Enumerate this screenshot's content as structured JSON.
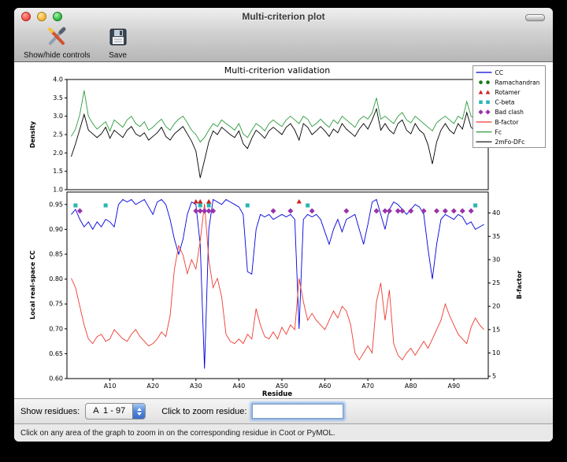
{
  "window": {
    "title": "Multi-criterion plot"
  },
  "toolbar": {
    "show_hide_label": "Show/hide controls",
    "save_label": "Save"
  },
  "controls": {
    "show_residues_label": "Show residues:",
    "range_value": "A  1 - 97",
    "zoom_label": "Click to zoom residue:",
    "zoom_input_value": "",
    "status_text": "Click on any area of the graph to zoom in on the corresponding residue in Coot or PyMOL."
  },
  "chart_data": {
    "type": "line",
    "title": "Multi-criterion validation",
    "xlabel": "Residue",
    "x_range": [
      1,
      97
    ],
    "xticks": [
      [
        10,
        "A10"
      ],
      [
        20,
        "A20"
      ],
      [
        30,
        "A30"
      ],
      [
        40,
        "A40"
      ],
      [
        50,
        "A50"
      ],
      [
        60,
        "A60"
      ],
      [
        70,
        "A70"
      ],
      [
        80,
        "A80"
      ],
      [
        90,
        "A90"
      ]
    ],
    "legend": [
      {
        "label": "CC",
        "swatch": "line",
        "color": "#0000dd"
      },
      {
        "label": "Ramachandran",
        "swatch": "circle",
        "color": "#1a7a1a"
      },
      {
        "label": "Rotamer",
        "swatch": "triangle",
        "color": "#cc2222"
      },
      {
        "label": "C-beta",
        "swatch": "square",
        "color": "#2ab5b5"
      },
      {
        "label": "Bad clash",
        "swatch": "diamond",
        "color": "#9933aa"
      },
      {
        "label": "B-factor",
        "swatch": "line",
        "color": "#ee3b32"
      },
      {
        "label": "Fc",
        "swatch": "line",
        "color": "#2e9b3e"
      },
      {
        "label": "2mFo-DFc",
        "swatch": "line",
        "color": "#000000"
      }
    ],
    "panels": [
      {
        "name": "density",
        "ylabel": "Density",
        "ylim": [
          1.0,
          4.0
        ],
        "yticks": [
          [
            4.0,
            "4.0"
          ],
          [
            3.5,
            "3.5"
          ],
          [
            3.0,
            "3.0"
          ],
          [
            2.5,
            "2.5"
          ],
          [
            2.0,
            "2.0"
          ],
          [
            1.5,
            "1.5"
          ],
          [
            1.0,
            "1.0"
          ]
        ],
        "series": [
          {
            "name": "Fc",
            "color": "#2e9b3e",
            "values": [
              2.45,
              2.65,
              3.05,
              3.7,
              3.0,
              2.8,
              2.65,
              2.75,
              2.85,
              2.6,
              2.9,
              2.8,
              2.7,
              2.9,
              3.0,
              2.8,
              2.72,
              2.85,
              2.62,
              2.7,
              2.82,
              2.92,
              2.72,
              2.62,
              2.8,
              2.92,
              3.0,
              2.82,
              2.62,
              2.5,
              2.3,
              2.42,
              2.62,
              2.8,
              2.72,
              2.9,
              2.8,
              2.72,
              2.62,
              2.8,
              2.52,
              2.42,
              2.62,
              2.8,
              2.72,
              2.6,
              2.8,
              2.9,
              2.8,
              2.72,
              2.9,
              3.0,
              2.9,
              2.8,
              3.0,
              2.92,
              2.72,
              2.8,
              2.92,
              2.8,
              2.7,
              2.9,
              2.8,
              3.0,
              2.9,
              2.8,
              2.7,
              2.9,
              3.0,
              2.92,
              3.1,
              3.5,
              2.92,
              3.0,
              2.9,
              2.8,
              3.0,
              3.1,
              2.9,
              2.82,
              3.0,
              2.9,
              2.8,
              2.7,
              2.6,
              2.82,
              2.92,
              3.0,
              2.9,
              2.8,
              3.0,
              2.92,
              3.4,
              3.0,
              2.92,
              3.3,
              3.42
            ]
          },
          {
            "name": "2mFo-DFc",
            "color": "#000000",
            "values": [
              1.9,
              2.25,
              2.65,
              3.05,
              2.62,
              2.52,
              2.42,
              2.52,
              2.7,
              2.4,
              2.62,
              2.52,
              2.42,
              2.62,
              2.72,
              2.52,
              2.45,
              2.55,
              2.35,
              2.45,
              2.55,
              2.7,
              2.45,
              2.35,
              2.52,
              2.62,
              2.72,
              2.52,
              2.32,
              2.05,
              1.32,
              1.8,
              2.3,
              2.6,
              2.5,
              2.7,
              2.6,
              2.5,
              2.42,
              2.6,
              2.25,
              2.12,
              2.4,
              2.62,
              2.52,
              2.4,
              2.6,
              2.7,
              2.6,
              2.5,
              2.7,
              2.8,
              2.62,
              2.35,
              2.8,
              2.7,
              2.5,
              2.6,
              2.72,
              2.6,
              2.45,
              2.65,
              2.55,
              2.8,
              2.65,
              2.55,
              2.45,
              2.65,
              2.8,
              2.65,
              2.9,
              3.2,
              2.62,
              2.8,
              2.62,
              2.52,
              2.8,
              2.9,
              2.62,
              2.52,
              2.8,
              2.62,
              2.52,
              2.22,
              1.7,
              2.3,
              2.62,
              2.8,
              2.62,
              2.52,
              2.8,
              2.65,
              3.1,
              2.7,
              2.6,
              2.9,
              3.05
            ]
          }
        ]
      },
      {
        "name": "cc_bfactor",
        "ylabel": "Local real-space CC",
        "ylim": [
          0.6,
          0.975
        ],
        "yticks": [
          [
            0.95,
            "0.95"
          ],
          [
            0.9,
            "0.90"
          ],
          [
            0.85,
            "0.85"
          ],
          [
            0.8,
            "0.80"
          ],
          [
            0.75,
            "0.75"
          ],
          [
            0.7,
            "0.70"
          ],
          [
            0.65,
            "0.65"
          ],
          [
            0.6,
            "0.60"
          ]
        ],
        "y2label": "B-factor",
        "y2lim": [
          4.5,
          44.5
        ],
        "y2ticks": [
          [
            40,
            "40"
          ],
          [
            35,
            "35"
          ],
          [
            30,
            "30"
          ],
          [
            25,
            "25"
          ],
          [
            20,
            "20"
          ],
          [
            15,
            "15"
          ],
          [
            10,
            "10"
          ],
          [
            5,
            "5"
          ]
        ],
        "series": [
          {
            "name": "CC",
            "color": "#0000dd",
            "axis": "left",
            "values": [
              0.93,
              0.94,
              0.92,
              0.905,
              0.915,
              0.9,
              0.915,
              0.905,
              0.92,
              0.915,
              0.905,
              0.95,
              0.96,
              0.955,
              0.96,
              0.95,
              0.955,
              0.96,
              0.945,
              0.93,
              0.955,
              0.96,
              0.95,
              0.92,
              0.88,
              0.85,
              0.88,
              0.93,
              0.955,
              0.95,
              0.87,
              0.62,
              0.9,
              0.96,
              0.955,
              0.95,
              0.96,
              0.955,
              0.95,
              0.945,
              0.93,
              0.815,
              0.81,
              0.9,
              0.93,
              0.925,
              0.93,
              0.92,
              0.925,
              0.93,
              0.925,
              0.93,
              0.92,
              0.7,
              0.92,
              0.93,
              0.925,
              0.93,
              0.92,
              0.895,
              0.87,
              0.9,
              0.92,
              0.895,
              0.92,
              0.925,
              0.93,
              0.9,
              0.87,
              0.91,
              0.955,
              0.96,
              0.93,
              0.9,
              0.94,
              0.955,
              0.95,
              0.94,
              0.93,
              0.94,
              0.95,
              0.945,
              0.93,
              0.86,
              0.8,
              0.87,
              0.92,
              0.93,
              0.925,
              0.92,
              0.93,
              0.925,
              0.91,
              0.915,
              0.9,
              0.905,
              0.91
            ]
          },
          {
            "name": "B-factor",
            "color": "#ee3b32",
            "axis": "right",
            "values": [
              26,
              24,
              20,
              16,
              13,
              12,
              13.5,
              14,
              12.5,
              13,
              15,
              14,
              13,
              12.5,
              14,
              15,
              13.5,
              12.5,
              11.5,
              12,
              13,
              14.5,
              13.5,
              18,
              28,
              33,
              31,
              27,
              30,
              28,
              34,
              42,
              30,
              24,
              26,
              22,
              14,
              12.5,
              12,
              13,
              12,
              14,
              13,
              19.5,
              16,
              13.5,
              13,
              14.5,
              13,
              15.5,
              14,
              16,
              15,
              26,
              21,
              17,
              18.5,
              17,
              16,
              15,
              17,
              19,
              17.5,
              20,
              19,
              16,
              10,
              8.5,
              10,
              11.5,
              10,
              21,
              25,
              17,
              23.5,
              12,
              9.5,
              8.5,
              10,
              11,
              9.5,
              11,
              12.5,
              11,
              13,
              15,
              17,
              20.5,
              18,
              16,
              14,
              13,
              12,
              15.5,
              17.5,
              16,
              15
            ]
          }
        ],
        "markers": [
          {
            "name": "Rotamer",
            "shape": "triangle",
            "color": "#cc2222",
            "x": [
              30,
              31,
              33,
              54
            ]
          },
          {
            "name": "C-beta",
            "shape": "square",
            "color": "#2ab5b5",
            "x": [
              2,
              9,
              31,
              33,
              42,
              56,
              95
            ]
          },
          {
            "name": "Bad clash",
            "shape": "diamond",
            "color": "#9933aa",
            "x": [
              3,
              30,
              31,
              32,
              33,
              34,
              48,
              52,
              57,
              65,
              72,
              74,
              75,
              77,
              78,
              80,
              83,
              86,
              88,
              90,
              92,
              94
            ]
          }
        ]
      }
    ]
  }
}
